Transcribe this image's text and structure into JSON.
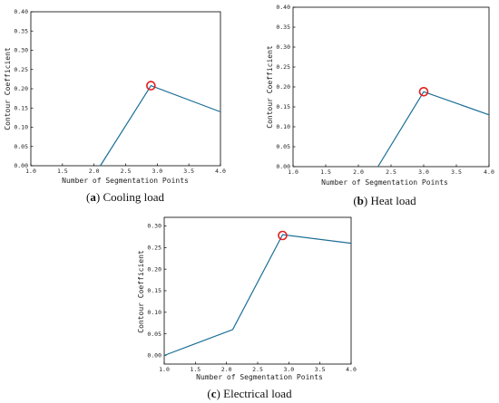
{
  "chart_data": [
    {
      "id": "a",
      "type": "line",
      "caption_letter": "a",
      "caption_text": " Cooling load",
      "xlabel": "Number of Segmentation Points",
      "ylabel": "Contour Coefficient",
      "xlim": [
        1.0,
        4.0
      ],
      "ylim": [
        0.0,
        0.4
      ],
      "xticks": [
        "1.0",
        "1.5",
        "2.0",
        "2.5",
        "3.0",
        "3.5",
        "4.0"
      ],
      "yticks": [
        "0.00",
        "0.05",
        "0.10",
        "0.15",
        "0.20",
        "0.25",
        "0.30",
        "0.35",
        "0.40"
      ],
      "x": [
        2.1,
        2.9,
        4.0
      ],
      "y": [
        -0.01,
        0.208,
        0.14
      ],
      "highlight": {
        "x": 2.9,
        "y": 0.208
      },
      "line_color": "#1a6e96",
      "marker_color": "#e02020"
    },
    {
      "id": "b",
      "type": "line",
      "caption_letter": "b",
      "caption_text": " Heat load",
      "xlabel": "Number of Segmentation Points",
      "ylabel": "Contour Coefficient",
      "xlim": [
        1.0,
        4.0
      ],
      "ylim": [
        0.0,
        0.4
      ],
      "xticks": [
        "1.0",
        "1.5",
        "2.0",
        "2.5",
        "3.0",
        "3.5",
        "4.0"
      ],
      "yticks": [
        "0.00",
        "0.05",
        "0.10",
        "0.15",
        "0.20",
        "0.25",
        "0.30",
        "0.35",
        "0.40"
      ],
      "x": [
        2.3,
        3.0,
        4.0
      ],
      "y": [
        -0.01,
        0.188,
        0.13
      ],
      "highlight": {
        "x": 3.0,
        "y": 0.188
      },
      "line_color": "#1a6e96",
      "marker_color": "#e02020"
    },
    {
      "id": "c",
      "type": "line",
      "caption_letter": "c",
      "caption_text": " Electrical load",
      "xlabel": "Number of Segmentation Points",
      "ylabel": "Contour Coefficient",
      "xlim": [
        1.0,
        4.0
      ],
      "ylim": [
        -0.02,
        0.32
      ],
      "xticks": [
        "1.0",
        "1.5",
        "2.0",
        "2.5",
        "3.0",
        "3.5",
        "4.0"
      ],
      "yticks": [
        "0.00",
        "0.05",
        "0.10",
        "0.15",
        "0.20",
        "0.25",
        "0.30"
      ],
      "x": [
        1.0,
        2.1,
        2.9,
        4.0
      ],
      "y": [
        0.0,
        0.06,
        0.28,
        0.26
      ],
      "highlight": {
        "x": 2.9,
        "y": 0.278
      },
      "line_color": "#1a6e96",
      "marker_color": "#e02020"
    }
  ]
}
